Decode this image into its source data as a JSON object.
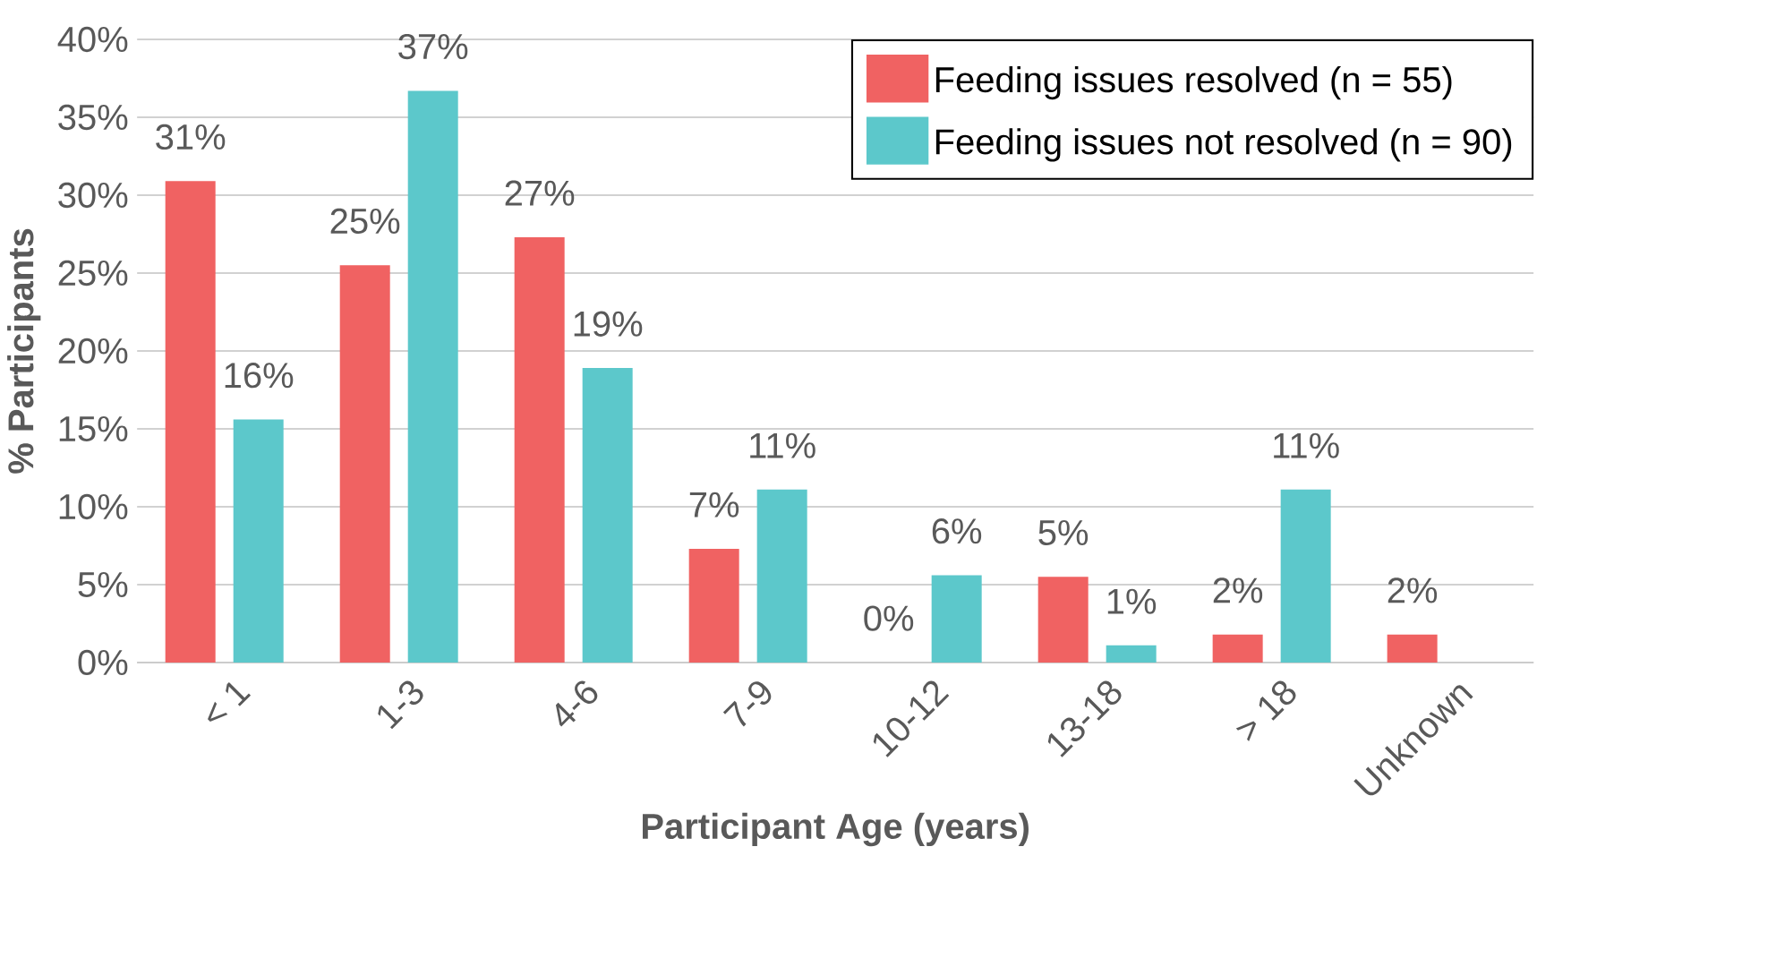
{
  "chart_data": {
    "type": "bar",
    "xlabel": "Participant Age (years)",
    "ylabel": "% Participants",
    "categories": [
      "< 1",
      "1-3",
      "4-6",
      "7-9",
      "10-12",
      "13-18",
      "> 18",
      "Unknown"
    ],
    "series": [
      {
        "name": "Feeding issues resolved (n = 55)",
        "color": "#f06262",
        "values": [
          30.9,
          25.5,
          27.3,
          7.3,
          0,
          5.5,
          1.8,
          1.8
        ],
        "value_labels": [
          "31%",
          "25%",
          "27%",
          "7%",
          "0%",
          "5%",
          "2%",
          "2%"
        ]
      },
      {
        "name": "Feeding issues not resolved (n = 90)",
        "color": "#5cc8cb",
        "values": [
          15.6,
          36.7,
          18.9,
          11.1,
          5.6,
          1.1,
          11.1,
          null
        ],
        "value_labels": [
          "16%",
          "37%",
          "19%",
          "11%",
          "6%",
          "1%",
          "11%",
          null
        ]
      }
    ],
    "ylim": [
      0,
      40
    ],
    "yticks": [
      {
        "value": 0,
        "label": "0%"
      },
      {
        "value": 5,
        "label": "5%"
      },
      {
        "value": 10,
        "label": "10%"
      },
      {
        "value": 15,
        "label": "15%"
      },
      {
        "value": 20,
        "label": "20%"
      },
      {
        "value": 25,
        "label": "25%"
      },
      {
        "value": 30,
        "label": "30%"
      },
      {
        "value": 35,
        "label": "35%"
      },
      {
        "value": 40,
        "label": "40%"
      }
    ],
    "grid": "y",
    "legend": "top right"
  }
}
